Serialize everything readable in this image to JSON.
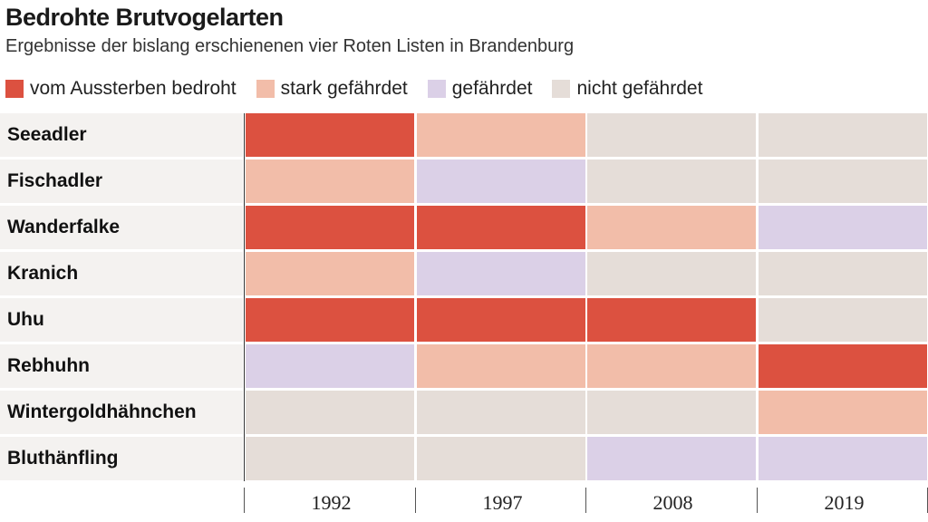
{
  "header": {
    "title": "Bedrohte Brutvogelarten",
    "subtitle": "Ergebnisse der bislang erschienenen vier Roten Listen in Brandenburg"
  },
  "chart_data": {
    "type": "heatmap",
    "title": "Bedrohte Brutvogelarten",
    "subtitle": "Ergebnisse der bislang erschienenen vier Roten Listen in Brandenburg",
    "legend": [
      {
        "key": "vom_aussterben",
        "label": "vom Aussterben bedroht",
        "color": "#dc5140"
      },
      {
        "key": "stark",
        "label": "stark gefährdet",
        "color": "#f2bda9"
      },
      {
        "key": "gefaehrdet",
        "label": "gefährdet",
        "color": "#dbd0e7"
      },
      {
        "key": "nicht",
        "label": "nicht gefährdet",
        "color": "#e5ddd8"
      }
    ],
    "legend_position": "top-left",
    "years": [
      "1992",
      "1997",
      "2008",
      "2019"
    ],
    "rows": [
      {
        "species": "Seeadler",
        "status": [
          "vom Aussterben bedroht",
          "stark gefährdet",
          "nicht gefährdet",
          "nicht gefährdet"
        ]
      },
      {
        "species": "Fischadler",
        "status": [
          "stark gefährdet",
          "gefährdet",
          "nicht gefährdet",
          "nicht gefährdet"
        ]
      },
      {
        "species": "Wanderfalke",
        "status": [
          "vom Aussterben bedroht",
          "vom Aussterben bedroht",
          "stark gefährdet",
          "gefährdet"
        ]
      },
      {
        "species": "Kranich",
        "status": [
          "stark gefährdet",
          "gefährdet",
          "nicht gefährdet",
          "nicht gefährdet"
        ]
      },
      {
        "species": "Uhu",
        "status": [
          "vom Aussterben bedroht",
          "vom Aussterben bedroht",
          "vom Aussterben bedroht",
          "nicht gefährdet"
        ]
      },
      {
        "species": "Rebhuhn",
        "status": [
          "gefährdet",
          "stark gefährdet",
          "stark gefährdet",
          "vom Aussterben bedroht"
        ]
      },
      {
        "species": "Wintergoldhähnchen",
        "status": [
          "nicht gefährdet",
          "nicht gefährdet",
          "nicht gefährdet",
          "stark gefährdet"
        ]
      },
      {
        "species": "Bluthänfling",
        "status": [
          "nicht gefährdet",
          "nicht gefährdet",
          "gefährdet",
          "gefährdet"
        ]
      }
    ],
    "label_background": "#f4f2f0"
  }
}
